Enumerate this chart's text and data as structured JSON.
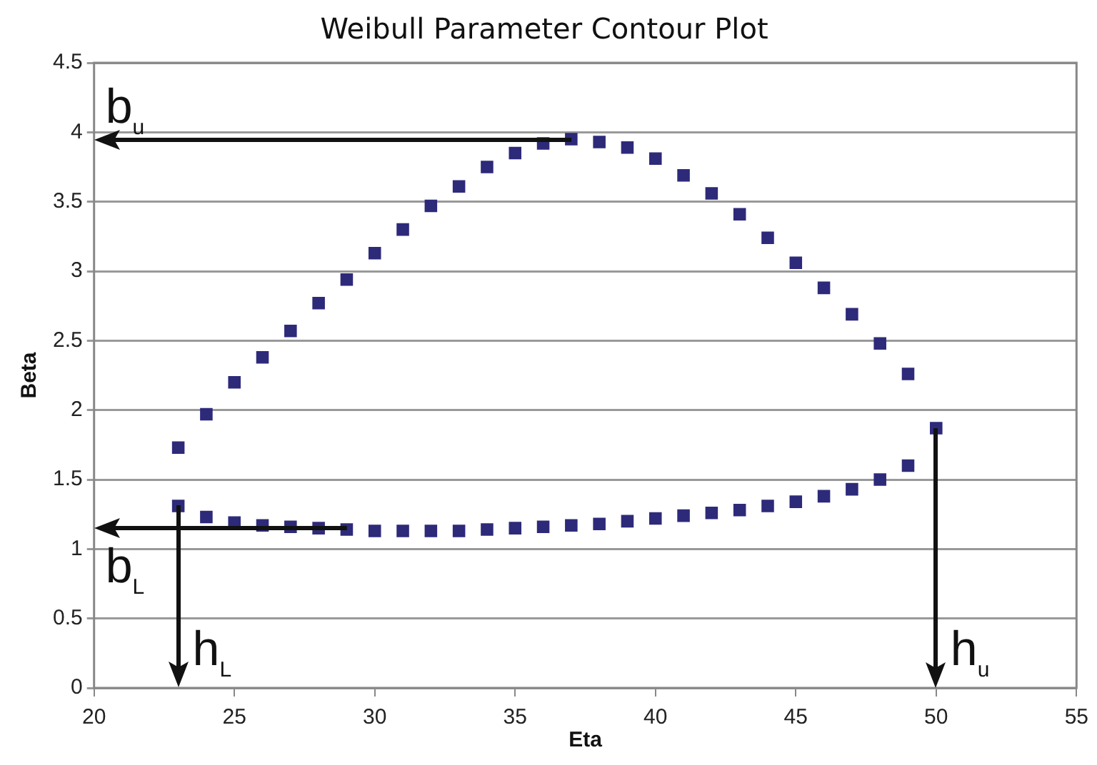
{
  "chart_data": {
    "type": "scatter",
    "title": "Weibull Parameter Contour Plot",
    "xlabel": "Eta",
    "ylabel": "Beta",
    "series": [
      {
        "color": "#2e2a7a",
        "x": [
          23,
          24,
          25,
          26,
          27,
          28,
          29,
          30,
          31,
          32,
          33,
          34,
          35,
          36,
          37,
          38,
          39,
          40,
          41,
          42,
          43,
          44,
          45,
          46,
          47,
          48,
          49,
          50,
          49,
          48,
          47,
          46,
          45,
          44,
          43,
          42,
          41,
          40,
          39,
          38,
          37,
          36,
          35,
          34,
          33,
          32,
          31,
          30,
          29,
          28,
          27,
          26,
          25,
          24,
          23
        ],
        "values": [
          1.73,
          1.97,
          2.2,
          2.38,
          2.57,
          2.77,
          2.94,
          3.13,
          3.3,
          3.47,
          3.61,
          3.75,
          3.85,
          3.92,
          3.95,
          3.93,
          3.89,
          3.81,
          3.69,
          3.56,
          3.41,
          3.24,
          3.06,
          2.88,
          2.69,
          2.48,
          2.26,
          1.87,
          1.6,
          1.5,
          1.43,
          1.38,
          1.34,
          1.31,
          1.28,
          1.26,
          1.24,
          1.22,
          1.2,
          1.18,
          1.17,
          1.16,
          1.15,
          1.14,
          1.13,
          1.13,
          1.13,
          1.13,
          1.14,
          1.15,
          1.16,
          1.17,
          1.19,
          1.23,
          1.31
        ]
      }
    ],
    "xlim": [
      20,
      55
    ],
    "xticks": [
      20,
      25,
      30,
      35,
      40,
      45,
      50,
      55
    ],
    "ylim": [
      0,
      4.5
    ],
    "yticks": [
      0,
      0.5,
      1,
      1.5,
      2,
      2.5,
      3,
      3.5,
      4,
      4.5
    ],
    "grid": "y",
    "marker": "square",
    "legend": false,
    "annotations": [
      {
        "text": "b$_{u}$",
        "x": 37,
        "y": 3.95
      },
      {
        "text": "b$_{L}$",
        "x": 29,
        "y": 1.15
      },
      {
        "text": "h$_{L}$",
        "x": 23,
        "y": 1.31
      },
      {
        "text": "h$_{u}$",
        "x": 50,
        "y": 1.87
      }
    ]
  }
}
